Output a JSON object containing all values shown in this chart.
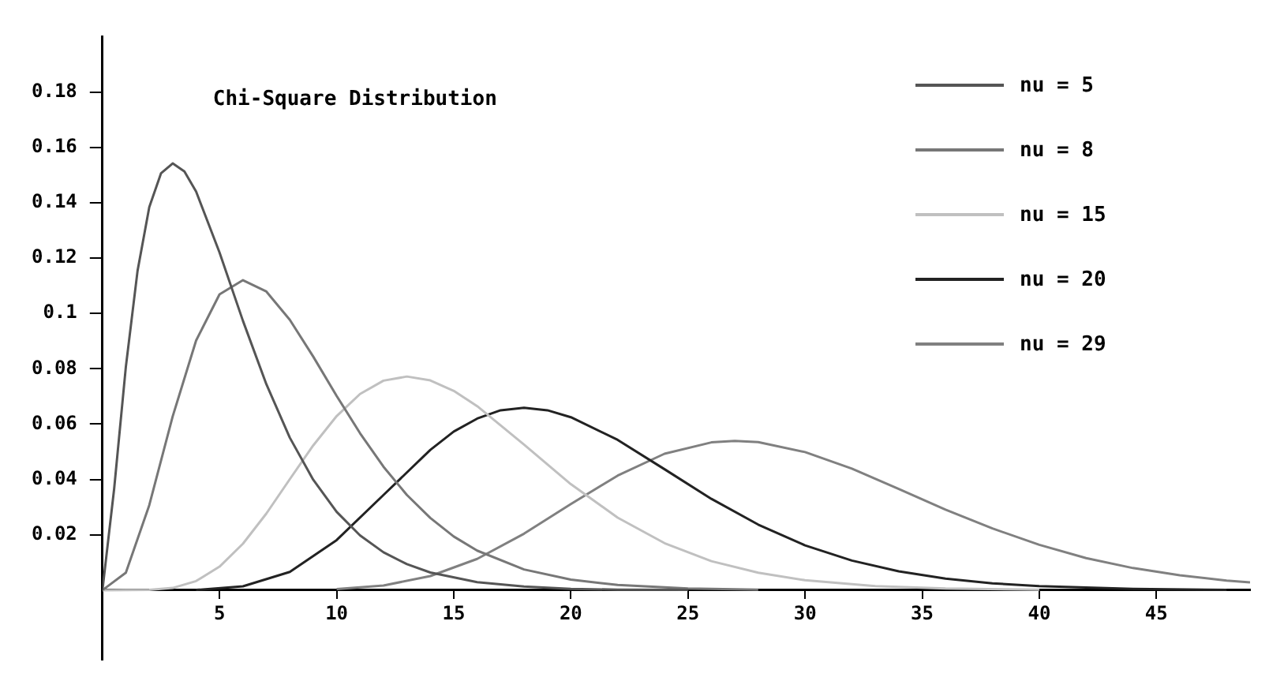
{
  "chart_data": {
    "type": "line",
    "title": "Chi-Square Distribution",
    "xlim": [
      0,
      49
    ],
    "xticks": [
      5,
      10,
      15,
      20,
      25,
      30,
      35,
      40,
      45
    ],
    "ylim": [
      -0.025,
      0.2
    ],
    "yticks": [
      0.02,
      0.04,
      0.06,
      0.08,
      0.1,
      0.12,
      0.14,
      0.16,
      0.18
    ],
    "grid": false,
    "legend": "top right",
    "marker": "none",
    "line_style": "solid",
    "series": [
      {
        "name": "nu = 5",
        "color": "#555555",
        "x": [
          0,
          0.5,
          1,
          1.5,
          2,
          2.5,
          3,
          3.5,
          4,
          5,
          6,
          7,
          8,
          9,
          10,
          11,
          12,
          13,
          14,
          16,
          18,
          20,
          22,
          25
        ],
        "values": [
          0,
          0.0366,
          0.0807,
          0.1154,
          0.1384,
          0.1506,
          0.1542,
          0.1513,
          0.144,
          0.122,
          0.0973,
          0.0744,
          0.0551,
          0.0399,
          0.0283,
          0.0198,
          0.0137,
          0.0094,
          0.0064,
          0.0029,
          0.0013,
          0.0005,
          0.0002,
          0.0001
        ]
      },
      {
        "name": "nu = 8",
        "color": "#777777",
        "x": [
          0,
          1,
          2,
          3,
          4,
          5,
          6,
          7,
          8,
          9,
          10,
          11,
          12,
          13,
          14,
          15,
          16,
          18,
          20,
          22,
          25,
          28
        ],
        "values": [
          0,
          0.0063,
          0.0307,
          0.0628,
          0.0902,
          0.1069,
          0.112,
          0.1079,
          0.0977,
          0.0844,
          0.0702,
          0.0567,
          0.0446,
          0.0344,
          0.0261,
          0.0194,
          0.0143,
          0.0075,
          0.0038,
          0.0019,
          0.0006,
          0.0002
        ]
      },
      {
        "name": "nu = 15",
        "color": "#c0c0c0",
        "x": [
          0,
          2,
          3,
          4,
          5,
          6,
          7,
          8,
          9,
          10,
          11,
          12,
          13,
          14,
          15,
          16,
          18,
          20,
          22,
          24,
          26,
          28,
          30,
          33,
          36,
          40
        ],
        "values": [
          0,
          0.0001,
          0.0008,
          0.0033,
          0.0085,
          0.0168,
          0.0277,
          0.0401,
          0.0523,
          0.0629,
          0.0709,
          0.0757,
          0.0772,
          0.0758,
          0.072,
          0.0665,
          0.0526,
          0.0383,
          0.0262,
          0.017,
          0.0105,
          0.0063,
          0.0036,
          0.0015,
          0.0006,
          0.0002
        ]
      },
      {
        "name": "nu = 20",
        "color": "#222222",
        "x": [
          4,
          6,
          8,
          10,
          12,
          14,
          15,
          16,
          17,
          18,
          19,
          20,
          22,
          24,
          26,
          28,
          30,
          32,
          34,
          36,
          38,
          40,
          44,
          48
        ],
        "values": [
          0.0001,
          0.0014,
          0.0066,
          0.0181,
          0.0344,
          0.0507,
          0.0573,
          0.062,
          0.065,
          0.0659,
          0.065,
          0.0625,
          0.0543,
          0.0437,
          0.033,
          0.0237,
          0.0162,
          0.0107,
          0.0068,
          0.0042,
          0.0025,
          0.0015,
          0.0005,
          0.0001
        ]
      },
      {
        "name": "nu = 29",
        "color": "#808080",
        "x": [
          10,
          12,
          14,
          16,
          18,
          20,
          22,
          24,
          26,
          27,
          28,
          30,
          32,
          34,
          36,
          38,
          40,
          42,
          44,
          46,
          48,
          49
        ],
        "values": [
          0.0004,
          0.0017,
          0.0051,
          0.0113,
          0.0204,
          0.0311,
          0.0414,
          0.0493,
          0.0534,
          0.0539,
          0.0535,
          0.0499,
          0.0439,
          0.0366,
          0.0291,
          0.0223,
          0.0164,
          0.0116,
          0.008,
          0.0054,
          0.0035,
          0.0028
        ]
      }
    ]
  }
}
